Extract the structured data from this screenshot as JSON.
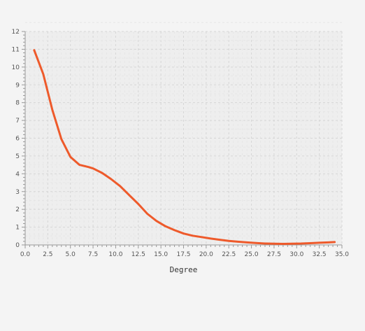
{
  "chart_data": {
    "type": "line",
    "xlabel": "Degree",
    "ylabel": "",
    "xlim": [
      0,
      35
    ],
    "ylim": [
      0,
      12
    ],
    "x_ticks": [
      "0.0",
      "2.5",
      "5.0",
      "7.5",
      "10.0",
      "12.5",
      "15.0",
      "17.5",
      "20.0",
      "22.5",
      "25.0",
      "27.5",
      "30.0",
      "32.5",
      "35.0"
    ],
    "y_ticks": [
      "0",
      "1",
      "2",
      "3",
      "4",
      "5",
      "6",
      "7",
      "8",
      "9",
      "10",
      "11",
      "12"
    ],
    "grid": true,
    "series": [
      {
        "color": "#ee5a2b",
        "x": [
          1,
          2,
          3,
          4,
          5,
          6,
          7,
          7.5,
          8.5,
          9.5,
          10.5,
          11.5,
          12.5,
          13.5,
          14.5,
          15.5,
          16.5,
          17.5,
          18.5,
          19.5,
          20.5,
          21.5,
          22.5,
          23.5,
          24.5,
          25.5,
          26.5,
          27.5,
          28.5,
          29.5,
          30.5,
          31.5,
          32.5,
          33.5,
          34.2
        ],
        "y": [
          10.95,
          9.6,
          7.6,
          5.95,
          4.95,
          4.5,
          4.38,
          4.3,
          4.05,
          3.7,
          3.3,
          2.8,
          2.3,
          1.75,
          1.35,
          1.05,
          0.83,
          0.64,
          0.52,
          0.44,
          0.36,
          0.29,
          0.23,
          0.18,
          0.14,
          0.11,
          0.08,
          0.07,
          0.06,
          0.07,
          0.08,
          0.1,
          0.12,
          0.14,
          0.16
        ]
      }
    ]
  }
}
